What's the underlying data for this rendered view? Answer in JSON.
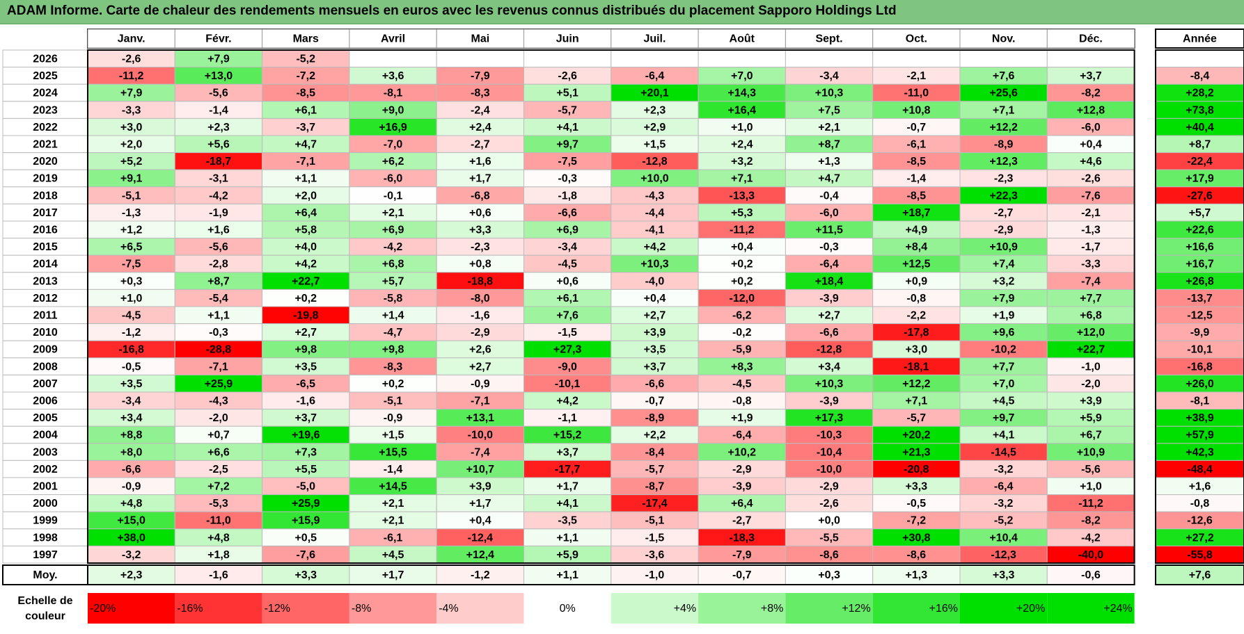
{
  "colors": {
    "title_bg": "#7fc47f",
    "neg_max": "#ff0000",
    "neutral": "#ffffff",
    "pos_max": "#00e000"
  },
  "chart_data": {
    "type": "heatmap",
    "title": "ADAM Informe. Carte de chaleur des rendements mensuels en euros avec les revenus connus distribués du placement Sapporo Holdings Ltd",
    "months": [
      "Janv.",
      "Févr.",
      "Mars",
      "Avril",
      "Mai",
      "Juin",
      "Juil.",
      "Août",
      "Sept.",
      "Oct.",
      "Nov.",
      "Déc."
    ],
    "year_header": "Année",
    "rows": [
      {
        "year": "2026",
        "months": [
          "-2,6",
          "+7,9",
          "-5,2",
          "",
          "",
          "",
          "",
          "",
          "",
          "",
          "",
          ""
        ],
        "annual": ""
      },
      {
        "year": "2025",
        "months": [
          "-11,2",
          "+13,0",
          "-7,2",
          "+3,6",
          "-7,9",
          "-2,6",
          "-6,4",
          "+7,0",
          "-3,4",
          "-2,1",
          "+7,6",
          "+3,7"
        ],
        "annual": "-8,4"
      },
      {
        "year": "2024",
        "months": [
          "+7,9",
          "-5,6",
          "-8,5",
          "-8,1",
          "-8,3",
          "+5,1",
          "+20,1",
          "+14,3",
          "+10,3",
          "-11,0",
          "+25,6",
          "-8,2"
        ],
        "annual": "+28,2"
      },
      {
        "year": "2023",
        "months": [
          "-3,3",
          "-1,4",
          "+6,1",
          "+9,0",
          "-2,4",
          "-5,7",
          "+2,3",
          "+16,4",
          "+7,5",
          "+10,8",
          "+7,1",
          "+12,8"
        ],
        "annual": "+73,8"
      },
      {
        "year": "2022",
        "months": [
          "+3,0",
          "+2,3",
          "-3,7",
          "+16,9",
          "+2,4",
          "+4,1",
          "+2,9",
          "+1,0",
          "+2,1",
          "-0,7",
          "+12,2",
          "-6,0"
        ],
        "annual": "+40,4"
      },
      {
        "year": "2021",
        "months": [
          "+2,0",
          "+5,6",
          "+4,7",
          "-7,0",
          "-2,7",
          "+9,7",
          "+1,5",
          "+2,4",
          "+8,7",
          "-6,1",
          "-8,9",
          "+0,4"
        ],
        "annual": "+8,7"
      },
      {
        "year": "2020",
        "months": [
          "+5,2",
          "-18,7",
          "-7,1",
          "+6,2",
          "+1,6",
          "-7,5",
          "-12,8",
          "+3,2",
          "+1,3",
          "-8,5",
          "+12,3",
          "+4,6"
        ],
        "annual": "-22,4"
      },
      {
        "year": "2019",
        "months": [
          "+9,1",
          "-3,1",
          "+1,1",
          "-6,0",
          "+1,7",
          "-0,3",
          "+10,0",
          "+7,1",
          "+4,7",
          "-1,4",
          "-2,3",
          "-2,6"
        ],
        "annual": "+17,9"
      },
      {
        "year": "2018",
        "months": [
          "-5,1",
          "-4,2",
          "+2,0",
          "-0,1",
          "-6,8",
          "-1,8",
          "-4,3",
          "-13,3",
          "-0,4",
          "-8,5",
          "+22,3",
          "-7,6"
        ],
        "annual": "-27,6"
      },
      {
        "year": "2017",
        "months": [
          "-1,3",
          "-1,9",
          "+6,4",
          "+2,1",
          "+0,6",
          "-6,6",
          "-4,4",
          "+5,3",
          "-6,0",
          "+18,7",
          "-2,7",
          "-2,1"
        ],
        "annual": "+5,7"
      },
      {
        "year": "2016",
        "months": [
          "+1,2",
          "+1,6",
          "+5,8",
          "+6,9",
          "+3,3",
          "+6,9",
          "-4,1",
          "-11,2",
          "+11,5",
          "+4,9",
          "-2,9",
          "-1,3"
        ],
        "annual": "+22,6"
      },
      {
        "year": "2015",
        "months": [
          "+6,5",
          "-5,6",
          "+4,0",
          "-4,2",
          "-2,3",
          "-3,4",
          "+4,2",
          "+0,4",
          "-0,3",
          "+8,4",
          "+10,9",
          "-1,7"
        ],
        "annual": "+16,6"
      },
      {
        "year": "2014",
        "months": [
          "-7,5",
          "-2,8",
          "+4,2",
          "+6,8",
          "+0,8",
          "-4,5",
          "+10,3",
          "+0,2",
          "-6,4",
          "+12,5",
          "+7,4",
          "-3,3"
        ],
        "annual": "+16,7"
      },
      {
        "year": "2013",
        "months": [
          "+0,3",
          "+8,7",
          "+22,7",
          "+5,7",
          "-18,8",
          "+0,6",
          "-4,0",
          "+0,2",
          "+18,4",
          "+0,9",
          "+3,2",
          "-7,4"
        ],
        "annual": "+26,8"
      },
      {
        "year": "2012",
        "months": [
          "+1,0",
          "-5,4",
          "+0,2",
          "-5,8",
          "-8,0",
          "+6,1",
          "+0,4",
          "-12,0",
          "-3,9",
          "-0,8",
          "+7,9",
          "+7,7"
        ],
        "annual": "-13,7"
      },
      {
        "year": "2011",
        "months": [
          "-4,5",
          "+1,1",
          "-19,8",
          "+1,4",
          "-1,6",
          "+7,6",
          "+2,7",
          "-6,2",
          "+2,7",
          "-2,2",
          "+1,9",
          "+6,8"
        ],
        "annual": "-12,5"
      },
      {
        "year": "2010",
        "months": [
          "-1,2",
          "-0,3",
          "+2,7",
          "-4,7",
          "-2,9",
          "-1,5",
          "+3,9",
          "-0,2",
          "-6,6",
          "-17,8",
          "+9,6",
          "+12,0"
        ],
        "annual": "-9,9"
      },
      {
        "year": "2009",
        "months": [
          "-16,8",
          "-28,8",
          "+9,8",
          "+9,8",
          "+2,6",
          "+27,3",
          "+3,5",
          "-5,9",
          "-12,8",
          "+3,0",
          "-10,2",
          "+22,7"
        ],
        "annual": "-10,1"
      },
      {
        "year": "2008",
        "months": [
          "-0,5",
          "-7,1",
          "+3,5",
          "-8,3",
          "+2,7",
          "-9,0",
          "+3,7",
          "+8,3",
          "+3,4",
          "-18,1",
          "+7,7",
          "-1,0"
        ],
        "annual": "-16,8"
      },
      {
        "year": "2007",
        "months": [
          "+3,5",
          "+25,9",
          "-6,5",
          "+0,2",
          "-0,9",
          "-10,1",
          "-6,6",
          "-4,5",
          "+10,3",
          "+12,2",
          "+7,0",
          "-2,0"
        ],
        "annual": "+26,0"
      },
      {
        "year": "2006",
        "months": [
          "-3,4",
          "-4,3",
          "-1,6",
          "-5,1",
          "-7,1",
          "+4,2",
          "-0,7",
          "-0,8",
          "-3,9",
          "+7,1",
          "+4,5",
          "+3,9"
        ],
        "annual": "-8,1"
      },
      {
        "year": "2005",
        "months": [
          "+3,4",
          "-2,0",
          "+3,7",
          "-0,9",
          "+13,1",
          "-1,1",
          "-8,9",
          "+1,9",
          "+17,3",
          "-5,7",
          "+9,7",
          "+5,9"
        ],
        "annual": "+38,9"
      },
      {
        "year": "2004",
        "months": [
          "+8,8",
          "+0,7",
          "+19,6",
          "+1,5",
          "-10,0",
          "+15,2",
          "+2,2",
          "-6,4",
          "-10,3",
          "+20,2",
          "+4,1",
          "+6,7"
        ],
        "annual": "+57,9"
      },
      {
        "year": "2003",
        "months": [
          "+8,0",
          "+6,6",
          "+7,3",
          "+15,5",
          "-7,4",
          "+3,7",
          "-8,4",
          "+10,2",
          "-10,4",
          "+21,3",
          "-14,5",
          "+10,9"
        ],
        "annual": "+42,3"
      },
      {
        "year": "2002",
        "months": [
          "-6,6",
          "-2,5",
          "+5,5",
          "-1,4",
          "+10,7",
          "-17,7",
          "-5,7",
          "-2,9",
          "-10,0",
          "-20,8",
          "-3,2",
          "-5,6"
        ],
        "annual": "-48,4"
      },
      {
        "year": "2001",
        "months": [
          "-0,9",
          "+7,2",
          "-5,0",
          "+14,5",
          "+3,9",
          "+1,7",
          "-8,7",
          "-3,9",
          "-2,9",
          "+3,3",
          "-6,4",
          "+1,0"
        ],
        "annual": "+1,6"
      },
      {
        "year": "2000",
        "months": [
          "+4,8",
          "-5,3",
          "+25,9",
          "+2,1",
          "+1,7",
          "+4,1",
          "-17,4",
          "+6,4",
          "-2,6",
          "-0,5",
          "-3,2",
          "-11,2"
        ],
        "annual": "-0,8"
      },
      {
        "year": "1999",
        "months": [
          "+15,0",
          "-11,0",
          "+15,9",
          "+2,1",
          "+0,4",
          "-3,5",
          "-5,1",
          "-2,7",
          "+0,0",
          "-7,2",
          "-5,2",
          "-8,2"
        ],
        "annual": "-12,6"
      },
      {
        "year": "1998",
        "months": [
          "+38,0",
          "+4,8",
          "+0,5",
          "-6,1",
          "-12,4",
          "+1,1",
          "-1,5",
          "-18,3",
          "-5,5",
          "+30,8",
          "+10,4",
          "-4,2"
        ],
        "annual": "+27,2"
      },
      {
        "year": "1997",
        "months": [
          "-3,2",
          "+1,8",
          "-7,6",
          "+4,5",
          "+12,4",
          "+5,9",
          "-3,6",
          "-7,9",
          "-8,6",
          "-8,6",
          "-12,3",
          "-40,0"
        ],
        "annual": "-55,8"
      }
    ],
    "average": {
      "label": "Moy.",
      "months": [
        "+2,3",
        "-1,6",
        "+3,3",
        "+1,7",
        "-1,2",
        "+1,1",
        "-1,0",
        "-0,7",
        "+0,3",
        "+1,3",
        "+3,3",
        "-0,6"
      ],
      "annual": "+7,6"
    },
    "scale": {
      "label_line1": "Echelle de",
      "label_line2": "couleur",
      "steps": [
        "-20%",
        "-16%",
        "-12%",
        "-8%",
        "-4%",
        "0%",
        "+4%",
        "+8%",
        "+12%",
        "+16%",
        "+20%",
        "+24%"
      ],
      "range": [
        -20,
        24
      ]
    }
  }
}
